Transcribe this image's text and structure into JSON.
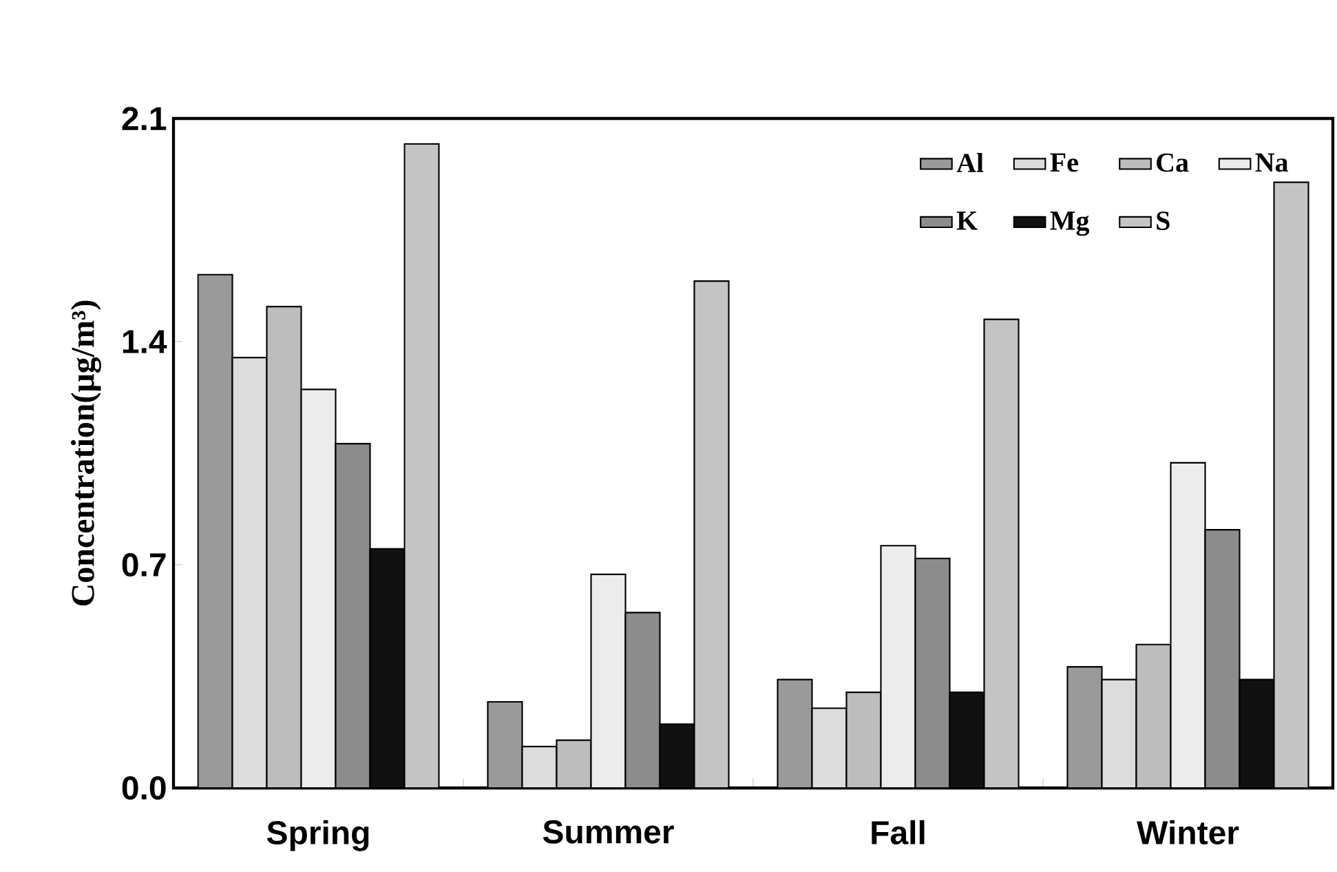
{
  "chart_data": {
    "type": "bar",
    "ylabel": "Concentration(μg/m³)",
    "categories": [
      "Spring",
      "Summer",
      "Fall",
      "Winter"
    ],
    "series": [
      {
        "name": "Al",
        "color": "#9a9a9a",
        "values": [
          1.61,
          0.27,
          0.34,
          0.38
        ]
      },
      {
        "name": "Fe",
        "color": "#dcdcdc",
        "values": [
          1.35,
          0.13,
          0.25,
          0.34
        ]
      },
      {
        "name": "Ca",
        "color": "#bdbdbd",
        "values": [
          1.51,
          0.15,
          0.3,
          0.45
        ]
      },
      {
        "name": "Na",
        "color": "#ececec",
        "values": [
          1.25,
          0.67,
          0.76,
          1.02
        ]
      },
      {
        "name": "K",
        "color": "#8c8c8c",
        "values": [
          1.08,
          0.55,
          0.72,
          0.81
        ]
      },
      {
        "name": "Mg",
        "color": "#111111",
        "values": [
          0.75,
          0.2,
          0.3,
          0.34
        ]
      },
      {
        "name": "S",
        "color": "#c4c4c4",
        "values": [
          2.02,
          1.59,
          1.47,
          1.9
        ]
      }
    ],
    "ylim": [
      0,
      2.1
    ],
    "yticks": [
      {
        "value": 0,
        "label": "0.0"
      },
      0.7,
      1.4,
      2.1
    ],
    "grid": false,
    "legend": "top right"
  }
}
